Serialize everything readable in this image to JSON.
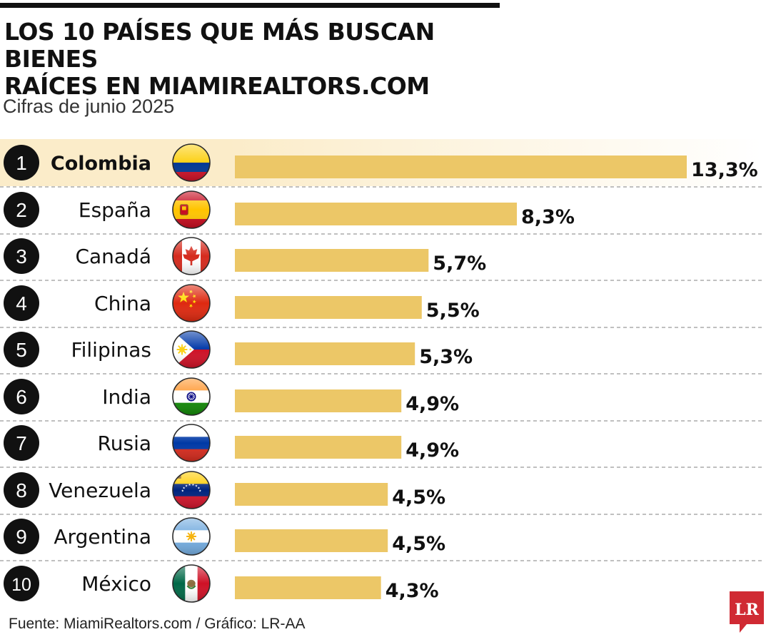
{
  "title_line1": "LOS 10 PAÍSES QUE MÁS BUSCAN BIENES",
  "title_line2": "RAÍCES EN MIAMIREALTORS.COM",
  "subtitle": "Cifras de junio 2025",
  "source": "Fuente: MiamiRealtors.com / Gráfico: LR-AA",
  "logo_text": "LR",
  "colors": {
    "bar": "#ecc767",
    "highlight": "#fbecc9",
    "rank_circle": "#111111",
    "logo": "#d02a33"
  },
  "chart_data": {
    "type": "bar",
    "orientation": "horizontal",
    "unit": "%",
    "categories": [
      "Colombia",
      "España",
      "Canadá",
      "China",
      "Filipinas",
      "India",
      "Rusia",
      "Venezuela",
      "Argentina",
      "México"
    ],
    "ranks": [
      "1",
      "2",
      "3",
      "4",
      "5",
      "6",
      "7",
      "8",
      "9",
      "10"
    ],
    "values": [
      13.3,
      8.3,
      5.7,
      5.5,
      5.3,
      4.9,
      4.9,
      4.5,
      4.5,
      4.3
    ],
    "value_labels": [
      "13,3%",
      "8,3%",
      "5,7%",
      "5,5%",
      "5,3%",
      "4,9%",
      "4,9%",
      "4,5%",
      "4,5%",
      "4,3%"
    ],
    "flag_icons": [
      "colombia-flag-icon",
      "spain-flag-icon",
      "canada-flag-icon",
      "china-flag-icon",
      "philippines-flag-icon",
      "india-flag-icon",
      "russia-flag-icon",
      "venezuela-flag-icon",
      "argentina-flag-icon",
      "mexico-flag-icon"
    ],
    "highlighted": "Colombia",
    "xlim": [
      0,
      13.3
    ],
    "grid": false,
    "legend": "none"
  }
}
